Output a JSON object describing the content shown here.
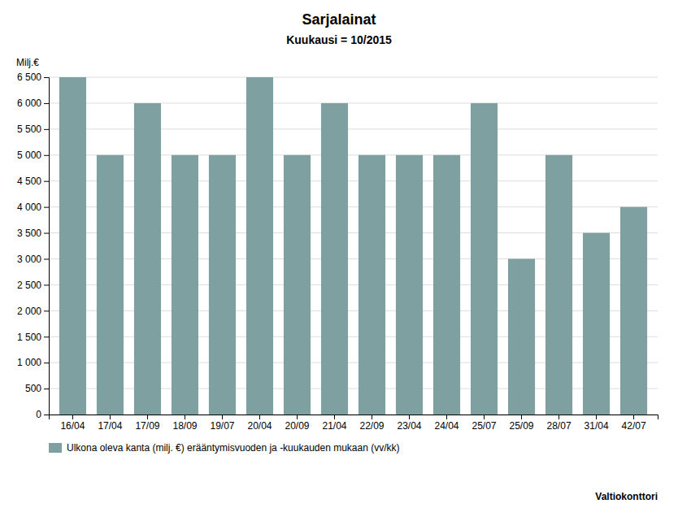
{
  "chart_data": {
    "type": "bar",
    "title": "Sarjalainat",
    "subtitle": "Kuukausi = 10/2015",
    "ylabel": "Milj.€",
    "categories": [
      "16/04",
      "17/04",
      "17/09",
      "18/09",
      "19/07",
      "20/04",
      "20/09",
      "21/04",
      "22/09",
      "23/04",
      "24/04",
      "25/07",
      "25/09",
      "28/07",
      "31/04",
      "42/07"
    ],
    "series": [
      {
        "name": "Ulkona oleva kanta (milj. €) erääntymisvuoden ja -kuukauden mukaan (vv/kk)",
        "color": "#7fa0a0",
        "values": [
          6500,
          5000,
          6000,
          5000,
          5000,
          6500,
          5000,
          6000,
          5000,
          5000,
          5000,
          6000,
          3000,
          5000,
          3500,
          4000
        ]
      }
    ],
    "ylim": [
      0,
      6500
    ],
    "yticks": [
      0,
      500,
      {
        "value": 1000,
        "label": "1 000"
      },
      {
        "value": 1500,
        "label": "1 500"
      },
      {
        "value": 2000,
        "label": "2 000"
      },
      {
        "value": 2500,
        "label": "2 500"
      },
      {
        "value": 3000,
        "label": "3 000"
      },
      {
        "value": 3500,
        "label": "3 500"
      },
      {
        "value": 4000,
        "label": "4 000"
      },
      {
        "value": 4500,
        "label": "4 500"
      },
      {
        "value": 5000,
        "label": "5 000"
      },
      {
        "value": 5500,
        "label": "5 500"
      },
      {
        "value": 6000,
        "label": "6 000"
      },
      {
        "value": 6500,
        "label": "6 500"
      }
    ],
    "grid": true,
    "legend": "bottom",
    "annotations": [
      "Valtiokonttori"
    ]
  }
}
